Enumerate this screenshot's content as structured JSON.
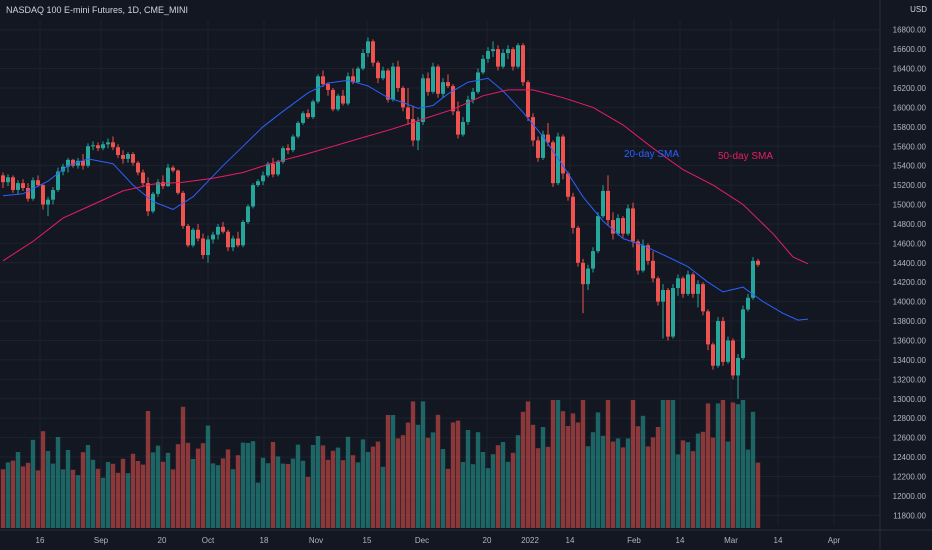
{
  "header": {
    "symbol_title": "NASDAQ 100 E-mini Futures, 1D, CME_MINI",
    "currency": "USD"
  },
  "colors": {
    "background": "#131722",
    "grid": "#1e222d",
    "up": "#26a69a",
    "down": "#ef5350",
    "sma20": "#2962ff",
    "sma50": "#e91e63",
    "axis_text": "#b2b5be"
  },
  "chart_data": {
    "type": "candlestick",
    "title": "NASDAQ 100 E-mini Futures, 1D, CME_MINI",
    "y_axis": {
      "ticks": [
        "11800.00",
        "12000.00",
        "12200.00",
        "12400.00",
        "12600.00",
        "12800.00",
        "13000.00",
        "13200.00",
        "13400.00",
        "13600.00",
        "13800.00",
        "14000.00",
        "14200.00",
        "14400.00",
        "14600.00",
        "14800.00",
        "15000.00",
        "15200.00",
        "15400.00",
        "15600.00",
        "15800.00",
        "16000.00",
        "16200.00",
        "16400.00",
        "16600.00",
        "16800.00"
      ],
      "range": [
        11700,
        16900
      ],
      "unit": "USD"
    },
    "x_axis": {
      "tick_labels": [
        "16",
        "Sep",
        "20",
        "Oct",
        "18",
        "Nov",
        "15",
        "Dec",
        "20",
        "2022",
        "14",
        "Feb",
        "14",
        "Mar",
        "14",
        "Apr"
      ]
    },
    "series": [
      {
        "name": "20-day SMA",
        "type": "line",
        "color": "#2962ff",
        "values": [
          [
            0,
            15090
          ],
          [
            4,
            15110
          ],
          [
            9,
            15240
          ],
          [
            13,
            15400
          ],
          [
            17,
            15470
          ],
          [
            22,
            15420
          ],
          [
            26,
            15200
          ],
          [
            30,
            15030
          ],
          [
            34,
            14950
          ],
          [
            38,
            15080
          ],
          [
            44,
            15400
          ],
          [
            48,
            15600
          ],
          [
            52,
            15800
          ],
          [
            56,
            15960
          ],
          [
            61,
            16150
          ],
          [
            65,
            16250
          ],
          [
            69,
            16280
          ],
          [
            73,
            16220
          ],
          [
            77,
            16100
          ],
          [
            80,
            16050
          ],
          [
            83,
            15990
          ],
          [
            86,
            16020
          ],
          [
            89,
            16140
          ],
          [
            93,
            16260
          ],
          [
            97,
            16300
          ],
          [
            100,
            16170
          ],
          [
            104,
            15950
          ],
          [
            108,
            15700
          ],
          [
            112,
            15400
          ],
          [
            116,
            15080
          ],
          [
            120,
            14830
          ],
          [
            124,
            14650
          ],
          [
            128,
            14580
          ],
          [
            133,
            14460
          ],
          [
            137,
            14360
          ],
          [
            141,
            14200
          ],
          [
            144,
            14100
          ],
          [
            148,
            14150
          ],
          [
            152,
            14000
          ],
          [
            156,
            13880
          ],
          [
            159,
            13810
          ],
          [
            161,
            13820
          ]
        ]
      },
      {
        "name": "50-day SMA",
        "type": "line",
        "color": "#e91e63",
        "values": [
          [
            0,
            14420
          ],
          [
            6,
            14620
          ],
          [
            12,
            14860
          ],
          [
            18,
            15000
          ],
          [
            24,
            15140
          ],
          [
            30,
            15210
          ],
          [
            36,
            15230
          ],
          [
            42,
            15270
          ],
          [
            48,
            15330
          ],
          [
            54,
            15430
          ],
          [
            60,
            15510
          ],
          [
            66,
            15600
          ],
          [
            72,
            15690
          ],
          [
            78,
            15780
          ],
          [
            84,
            15880
          ],
          [
            90,
            15980
          ],
          [
            96,
            16120
          ],
          [
            101,
            16180
          ],
          [
            106,
            16180
          ],
          [
            112,
            16100
          ],
          [
            118,
            16000
          ],
          [
            124,
            15820
          ],
          [
            130,
            15580
          ],
          [
            136,
            15360
          ],
          [
            142,
            15200
          ],
          [
            148,
            15000
          ],
          [
            154,
            14700
          ],
          [
            158,
            14460
          ],
          [
            161,
            14390
          ]
        ]
      }
    ],
    "candles_ohlc": [
      [
        15300,
        15330,
        15170,
        15230
      ],
      [
        15230,
        15310,
        15190,
        15280
      ],
      [
        15280,
        15300,
        15120,
        15150
      ],
      [
        15150,
        15250,
        15100,
        15220
      ],
      [
        15220,
        15260,
        15140,
        15170
      ],
      [
        15170,
        15220,
        15030,
        15060
      ],
      [
        15060,
        15280,
        15040,
        15250
      ],
      [
        15250,
        15300,
        15180,
        15200
      ],
      [
        15200,
        15210,
        14950,
        15000
      ],
      [
        15000,
        15080,
        14880,
        15050
      ],
      [
        15050,
        15180,
        15000,
        15150
      ],
      [
        15150,
        15380,
        15130,
        15340
      ],
      [
        15340,
        15420,
        15300,
        15390
      ],
      [
        15390,
        15480,
        15330,
        15460
      ],
      [
        15460,
        15470,
        15380,
        15400
      ],
      [
        15400,
        15480,
        15370,
        15450
      ],
      [
        15450,
        15520,
        15360,
        15400
      ],
      [
        15400,
        15630,
        15380,
        15600
      ],
      [
        15600,
        15650,
        15560,
        15610
      ],
      [
        15610,
        15640,
        15550,
        15580
      ],
      [
        15580,
        15650,
        15560,
        15620
      ],
      [
        15620,
        15680,
        15580,
        15640
      ],
      [
        15640,
        15700,
        15560,
        15590
      ],
      [
        15590,
        15620,
        15480,
        15510
      ],
      [
        15510,
        15560,
        15420,
        15470
      ],
      [
        15470,
        15540,
        15430,
        15520
      ],
      [
        15520,
        15540,
        15400,
        15430
      ],
      [
        15430,
        15450,
        15300,
        15330
      ],
      [
        15330,
        15360,
        15180,
        15220
      ],
      [
        15220,
        15280,
        14880,
        14930
      ],
      [
        14930,
        15130,
        14910,
        15110
      ],
      [
        15110,
        15260,
        15080,
        15230
      ],
      [
        15230,
        15300,
        15160,
        15190
      ],
      [
        15190,
        15420,
        15180,
        15380
      ],
      [
        15380,
        15400,
        15330,
        15350
      ],
      [
        15350,
        15360,
        15100,
        15120
      ],
      [
        15120,
        15140,
        14750,
        14780
      ],
      [
        14780,
        14800,
        14560,
        14580
      ],
      [
        14580,
        14760,
        14560,
        14740
      ],
      [
        14740,
        14800,
        14620,
        14650
      ],
      [
        14650,
        14700,
        14440,
        14480
      ],
      [
        14480,
        14680,
        14400,
        14640
      ],
      [
        14640,
        14720,
        14600,
        14690
      ],
      [
        14690,
        14800,
        14640,
        14770
      ],
      [
        14770,
        14820,
        14700,
        14720
      ],
      [
        14720,
        14740,
        14520,
        14560
      ],
      [
        14560,
        14680,
        14520,
        14650
      ],
      [
        14650,
        14720,
        14560,
        14580
      ],
      [
        14580,
        14840,
        14560,
        14820
      ],
      [
        14820,
        15000,
        14800,
        14980
      ],
      [
        14980,
        15220,
        14960,
        15200
      ],
      [
        15200,
        15260,
        15180,
        15240
      ],
      [
        15240,
        15340,
        15200,
        15300
      ],
      [
        15300,
        15440,
        15280,
        15420
      ],
      [
        15420,
        15480,
        15280,
        15310
      ],
      [
        15310,
        15460,
        15290,
        15440
      ],
      [
        15440,
        15600,
        15420,
        15580
      ],
      [
        15580,
        15620,
        15520,
        15560
      ],
      [
        15560,
        15720,
        15540,
        15700
      ],
      [
        15700,
        15860,
        15680,
        15840
      ],
      [
        15840,
        15960,
        15820,
        15940
      ],
      [
        15940,
        15980,
        15880,
        15900
      ],
      [
        15900,
        16080,
        15880,
        16060
      ],
      [
        16060,
        16340,
        16040,
        16320
      ],
      [
        16320,
        16380,
        16210,
        16240
      ],
      [
        16240,
        16260,
        16120,
        16180
      ],
      [
        16180,
        16200,
        15960,
        15980
      ],
      [
        15980,
        16140,
        15960,
        16120
      ],
      [
        16120,
        16180,
        16020,
        16040
      ],
      [
        16040,
        16360,
        16020,
        16320
      ],
      [
        16320,
        16400,
        16240,
        16260
      ],
      [
        16260,
        16420,
        16250,
        16400
      ],
      [
        16400,
        16600,
        16380,
        16560
      ],
      [
        16560,
        16720,
        16520,
        16680
      ],
      [
        16680,
        16700,
        16420,
        16460
      ],
      [
        16460,
        16480,
        16250,
        16300
      ],
      [
        16300,
        16420,
        16280,
        16380
      ],
      [
        16380,
        16400,
        16050,
        16080
      ],
      [
        16080,
        16460,
        16060,
        16420
      ],
      [
        16420,
        16480,
        16160,
        16200
      ],
      [
        16200,
        16220,
        15960,
        16000
      ],
      [
        16000,
        16200,
        15820,
        15880
      ],
      [
        15880,
        16020,
        15600,
        15660
      ],
      [
        15660,
        15900,
        15560,
        15850
      ],
      [
        15850,
        16340,
        15820,
        16300
      ],
      [
        16300,
        16360,
        16120,
        16160
      ],
      [
        16160,
        16460,
        16140,
        16420
      ],
      [
        16420,
        16440,
        16100,
        16140
      ],
      [
        16140,
        16300,
        16100,
        16260
      ],
      [
        16260,
        16340,
        16200,
        16220
      ],
      [
        16220,
        16240,
        15920,
        15960
      ],
      [
        15960,
        16060,
        15680,
        15720
      ],
      [
        15720,
        15900,
        15700,
        15850
      ],
      [
        15850,
        16120,
        15820,
        16080
      ],
      [
        16080,
        16200,
        16040,
        16160
      ],
      [
        16160,
        16400,
        16140,
        16360
      ],
      [
        16360,
        16540,
        16340,
        16500
      ],
      [
        16500,
        16620,
        16460,
        16580
      ],
      [
        16580,
        16680,
        16520,
        16600
      ],
      [
        16600,
        16640,
        16380,
        16420
      ],
      [
        16420,
        16600,
        16400,
        16560
      ],
      [
        16560,
        16640,
        16500,
        16600
      ],
      [
        16600,
        16620,
        16380,
        16420
      ],
      [
        16420,
        16660,
        16400,
        16640
      ],
      [
        16640,
        16660,
        16220,
        16260
      ],
      [
        16260,
        16280,
        15860,
        15900
      ],
      [
        15900,
        15940,
        15600,
        15660
      ],
      [
        15660,
        15700,
        15440,
        15480
      ],
      [
        15480,
        15760,
        15460,
        15720
      ],
      [
        15720,
        15840,
        15600,
        15640
      ],
      [
        15640,
        15660,
        15180,
        15220
      ],
      [
        15220,
        15740,
        15200,
        15700
      ],
      [
        15700,
        15720,
        15260,
        15320
      ],
      [
        15320,
        15340,
        15040,
        15080
      ],
      [
        15080,
        15120,
        14700,
        14760
      ],
      [
        14760,
        14780,
        14360,
        14400
      ],
      [
        14400,
        14440,
        13880,
        14180
      ],
      [
        14180,
        14380,
        14120,
        14340
      ],
      [
        14340,
        14560,
        14300,
        14520
      ],
      [
        14520,
        14920,
        14500,
        14880
      ],
      [
        14880,
        15200,
        14860,
        15140
      ],
      [
        15140,
        15300,
        14780,
        14840
      ],
      [
        14840,
        14920,
        14640,
        14700
      ],
      [
        14700,
        14900,
        14680,
        14860
      ],
      [
        14860,
        14880,
        14660,
        14700
      ],
      [
        14700,
        15000,
        14680,
        14960
      ],
      [
        14960,
        15020,
        14560,
        14620
      ],
      [
        14620,
        14640,
        14280,
        14320
      ],
      [
        14320,
        14640,
        14300,
        14580
      ],
      [
        14580,
        14600,
        14380,
        14420
      ],
      [
        14420,
        14520,
        14200,
        14240
      ],
      [
        14240,
        14260,
        13960,
        14000
      ],
      [
        14000,
        14180,
        13620,
        14120
      ],
      [
        14120,
        14140,
        13600,
        13640
      ],
      [
        13640,
        14180,
        13620,
        14140
      ],
      [
        14140,
        14280,
        14060,
        14240
      ],
      [
        14240,
        14260,
        14040,
        14080
      ],
      [
        14080,
        14320,
        14060,
        14280
      ],
      [
        14280,
        14300,
        14040,
        14080
      ],
      [
        14080,
        14220,
        13940,
        14180
      ],
      [
        14180,
        14200,
        13860,
        13900
      ],
      [
        13900,
        13920,
        13500,
        13560
      ],
      [
        13560,
        13580,
        13300,
        13340
      ],
      [
        13340,
        13840,
        13320,
        13800
      ],
      [
        13800,
        13840,
        13340,
        13380
      ],
      [
        13380,
        13640,
        13360,
        13600
      ],
      [
        13600,
        13620,
        13200,
        13240
      ],
      [
        13240,
        13460,
        13000,
        13420
      ],
      [
        13420,
        13960,
        13400,
        13920
      ],
      [
        13920,
        14080,
        13900,
        14040
      ],
      [
        14040,
        14460,
        14020,
        14420
      ],
      [
        14420,
        14440,
        14360,
        14380
      ]
    ],
    "volume_direction": "colored by candle direction (up=teal, down=red)",
    "annotations": [
      "20-day SMA",
      "50-day SMA"
    ]
  }
}
